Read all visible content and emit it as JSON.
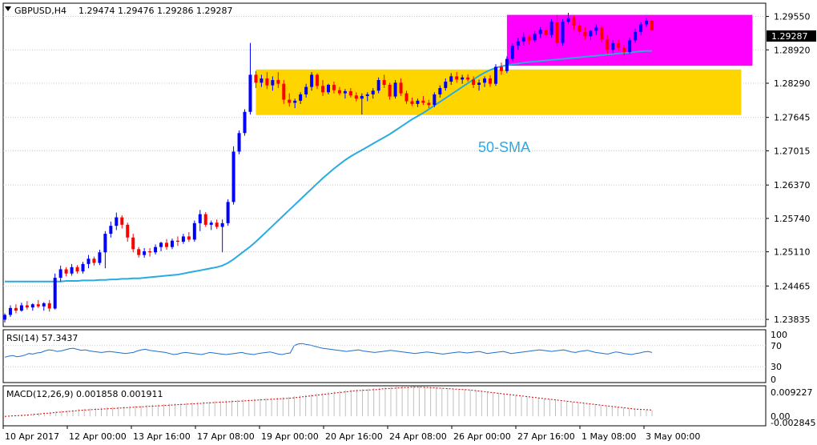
{
  "header": {
    "symbol": "GBPUSD,H4",
    "ohlc": "1.29474 1.29476 1.29286 1.29287"
  },
  "current_price_label": "1.29287",
  "sma_label": "50-SMA",
  "colors": {
    "bull": "#0000ff",
    "bear": "#ff0000",
    "sma": "#29abe2",
    "consolidation_zone": "#ffd500",
    "recent_zone": "#ff00ff",
    "rsi": "#1e6fd0",
    "macd_hist": "#c0c0c0",
    "macd_signal": "#cc0000",
    "grid": "#c8c8c8"
  },
  "main_axis": {
    "ticks": [
      "1.29550",
      "1.28920",
      "1.28290",
      "1.27645",
      "1.27015",
      "1.26370",
      "1.25740",
      "1.25110",
      "1.24465",
      "1.23835"
    ],
    "range": [
      1.237,
      1.298
    ]
  },
  "rsi_panel": {
    "label": "RSI(14) 57.3437",
    "ticks": [
      "100",
      "70",
      "30",
      "0"
    ],
    "values": [
      48,
      50,
      51,
      49,
      50,
      52,
      55,
      54,
      56,
      57,
      60,
      62,
      61,
      59,
      60,
      62,
      64,
      65,
      63,
      61,
      62,
      60,
      59,
      58,
      57,
      58,
      59,
      58,
      57,
      56,
      55,
      56,
      57,
      60,
      62,
      63,
      61,
      60,
      59,
      58,
      57,
      55,
      53,
      54,
      56,
      57,
      56,
      55,
      54,
      53,
      55,
      57,
      56,
      55,
      54,
      53,
      54,
      55,
      56,
      57,
      55,
      54,
      53,
      55,
      56,
      57,
      58,
      56,
      54,
      53,
      55,
      56,
      70,
      73,
      74,
      72,
      71,
      69,
      67,
      65,
      64,
      63,
      62,
      61,
      60,
      59,
      60,
      61,
      62,
      60,
      59,
      58,
      57,
      58,
      59,
      60,
      61,
      60,
      59,
      58,
      57,
      56,
      55,
      56,
      57,
      58,
      57,
      56,
      55,
      54,
      55,
      56,
      57,
      58,
      57,
      56,
      57,
      58,
      59,
      57,
      55,
      56,
      57,
      58,
      59,
      57,
      55,
      56,
      57,
      58,
      59,
      60,
      61,
      62,
      61,
      60,
      59,
      60,
      61,
      62,
      60,
      58,
      57,
      59,
      60,
      61,
      59,
      57,
      56,
      55,
      54,
      56,
      58,
      57,
      55,
      54,
      53,
      55,
      56,
      58,
      59,
      57
    ]
  },
  "macd_panel": {
    "label": "MACD(12,26,9) 0.001858 0.001911",
    "ticks": [
      "0.009227",
      "0.00",
      "-0.002845"
    ],
    "histogram": [
      0.0,
      0.0002,
      0.0003,
      0.0005,
      0.0006,
      0.0008,
      0.001,
      0.0012,
      0.0013,
      0.0015,
      0.0017,
      0.0018,
      0.002,
      0.0022,
      0.0023,
      0.0024,
      0.0025,
      0.0026,
      0.0027,
      0.0028,
      0.0029,
      0.003,
      0.0031,
      0.0032,
      0.0033,
      0.0034,
      0.0035,
      0.0036,
      0.0037,
      0.0038,
      0.0039,
      0.004,
      0.0041,
      0.0042,
      0.0043,
      0.0044,
      0.0045,
      0.0046,
      0.0047,
      0.0048,
      0.0049,
      0.005,
      0.0051,
      0.0052,
      0.0053,
      0.0054,
      0.0055,
      0.0056,
      0.0057,
      0.0058,
      0.0059,
      0.0061,
      0.0063,
      0.0065,
      0.0067,
      0.0069,
      0.0071,
      0.0073,
      0.0075,
      0.0077,
      0.0079,
      0.008,
      0.0081,
      0.0082,
      0.0083,
      0.0085,
      0.0087,
      0.0088,
      0.0089,
      0.009,
      0.0091,
      0.0092,
      0.0091,
      0.009,
      0.0089,
      0.0088,
      0.0087,
      0.0086,
      0.0085,
      0.0084,
      0.0083,
      0.0082,
      0.008,
      0.0078,
      0.0076,
      0.0074,
      0.0072,
      0.007,
      0.0068,
      0.0066,
      0.0064,
      0.0062,
      0.006,
      0.0058,
      0.0056,
      0.0054,
      0.0052,
      0.005,
      0.0048,
      0.0046,
      0.0044,
      0.0042,
      0.004,
      0.0038,
      0.0036,
      0.0034,
      0.0032,
      0.003,
      0.0028,
      0.0026,
      0.0024,
      0.0022,
      0.002,
      0.0019,
      0.0018
    ],
    "signal": [
      0.0,
      0.0001,
      0.0002,
      0.0003,
      0.0004,
      0.0006,
      0.0007,
      0.0009,
      0.001,
      0.0012,
      0.0013,
      0.0015,
      0.0016,
      0.0018,
      0.0019,
      0.002,
      0.0021,
      0.0022,
      0.0023,
      0.0024,
      0.0025,
      0.0026,
      0.0027,
      0.0028,
      0.0029,
      0.003,
      0.0031,
      0.0032,
      0.0033,
      0.0034,
      0.0035,
      0.0036,
      0.0037,
      0.0038,
      0.0039,
      0.004,
      0.0041,
      0.0042,
      0.0043,
      0.0044,
      0.0045,
      0.0046,
      0.0047,
      0.0048,
      0.0049,
      0.005,
      0.0051,
      0.0052,
      0.0053,
      0.0054,
      0.0055,
      0.0057,
      0.0059,
      0.0061,
      0.0063,
      0.0065,
      0.0067,
      0.0069,
      0.0071,
      0.0073,
      0.0075,
      0.0077,
      0.0078,
      0.0079,
      0.008,
      0.0081,
      0.0083,
      0.0084,
      0.0085,
      0.0086,
      0.0087,
      0.0088,
      0.0088,
      0.0088,
      0.0087,
      0.0086,
      0.0085,
      0.0084,
      0.0083,
      0.0082,
      0.0081,
      0.008,
      0.0078,
      0.0076,
      0.0074,
      0.0072,
      0.007,
      0.0068,
      0.0066,
      0.0064,
      0.0062,
      0.006,
      0.0058,
      0.0056,
      0.0054,
      0.0052,
      0.005,
      0.0048,
      0.0046,
      0.0044,
      0.0042,
      0.004,
      0.0038,
      0.0036,
      0.0034,
      0.0032,
      0.003,
      0.0028,
      0.0026,
      0.0024,
      0.0022,
      0.0021,
      0.002,
      0.0019
    ]
  },
  "x_axis": {
    "labels": [
      "10 Apr 2017",
      "12 Apr 00:00",
      "13 Apr 16:00",
      "17 Apr 08:00",
      "19 Apr 00:00",
      "20 Apr 16:00",
      "24 Apr 08:00",
      "26 Apr 00:00",
      "27 Apr 16:00",
      "1 May 08:00",
      "3 May 00:00"
    ]
  },
  "chart_data": {
    "type": "candlestick",
    "title": "GBPUSD,H4",
    "zones": [
      {
        "from_index": 45,
        "to_index": 132,
        "low": 1.2769,
        "high": 1.2855
      },
      {
        "from_index": 90,
        "to_index": 134,
        "low": 1.2862,
        "high": 1.2958
      }
    ],
    "candles": [
      [
        1.2383,
        1.2395,
        1.2378,
        1.2392
      ],
      [
        1.2392,
        1.241,
        1.2388,
        1.2405
      ],
      [
        1.2405,
        1.2412,
        1.2395,
        1.24
      ],
      [
        1.24,
        1.2415,
        1.2398,
        1.241
      ],
      [
        1.241,
        1.2418,
        1.2402,
        1.2406
      ],
      [
        1.2406,
        1.2414,
        1.24,
        1.2412
      ],
      [
        1.2412,
        1.242,
        1.2405,
        1.2408
      ],
      [
        1.2408,
        1.2416,
        1.24,
        1.2414
      ],
      [
        1.2414,
        1.242,
        1.2398,
        1.2404
      ],
      [
        1.2404,
        1.247,
        1.2402,
        1.2462
      ],
      [
        1.2462,
        1.2485,
        1.2455,
        1.2478
      ],
      [
        1.2478,
        1.2482,
        1.2465,
        1.247
      ],
      [
        1.247,
        1.2488,
        1.2466,
        1.2482
      ],
      [
        1.2482,
        1.2486,
        1.247,
        1.2474
      ],
      [
        1.2474,
        1.2492,
        1.247,
        1.2488
      ],
      [
        1.2488,
        1.2505,
        1.248,
        1.2498
      ],
      [
        1.2498,
        1.2502,
        1.2485,
        1.249
      ],
      [
        1.249,
        1.2515,
        1.2486,
        1.251
      ],
      [
        1.251,
        1.255,
        1.248,
        1.2545
      ],
      [
        1.2545,
        1.2568,
        1.2538,
        1.256
      ],
      [
        1.256,
        1.2585,
        1.2552,
        1.2576
      ],
      [
        1.2576,
        1.258,
        1.2555,
        1.2562
      ],
      [
        1.2562,
        1.2566,
        1.253,
        1.2538
      ],
      [
        1.2538,
        1.2545,
        1.251,
        1.2516
      ],
      [
        1.2516,
        1.252,
        1.25,
        1.2505
      ],
      [
        1.2505,
        1.2518,
        1.25,
        1.2512
      ],
      [
        1.2512,
        1.2518,
        1.2502,
        1.251
      ],
      [
        1.251,
        1.2525,
        1.2506,
        1.252
      ],
      [
        1.252,
        1.253,
        1.2512,
        1.2528
      ],
      [
        1.2528,
        1.2535,
        1.2515,
        1.252
      ],
      [
        1.252,
        1.2536,
        1.2516,
        1.2532
      ],
      [
        1.2532,
        1.254,
        1.2522,
        1.253
      ],
      [
        1.253,
        1.2545,
        1.2526,
        1.254
      ],
      [
        1.254,
        1.2548,
        1.253,
        1.2534
      ],
      [
        1.2534,
        1.257,
        1.253,
        1.2565
      ],
      [
        1.2565,
        1.259,
        1.255,
        1.2582
      ],
      [
        1.2582,
        1.2586,
        1.2558,
        1.2562
      ],
      [
        1.2562,
        1.257,
        1.2552,
        1.2566
      ],
      [
        1.2566,
        1.2572,
        1.2554,
        1.2558
      ],
      [
        1.2558,
        1.2572,
        1.251,
        1.2565
      ],
      [
        1.2565,
        1.261,
        1.256,
        1.2605
      ],
      [
        1.2605,
        1.271,
        1.26,
        1.27
      ],
      [
        1.27,
        1.274,
        1.2695,
        1.2735
      ],
      [
        1.2735,
        1.278,
        1.273,
        1.2775
      ],
      [
        1.2775,
        1.2905,
        1.277,
        1.2845
      ],
      [
        1.2845,
        1.2852,
        1.282,
        1.283
      ],
      [
        1.283,
        1.2845,
        1.2822,
        1.2838
      ],
      [
        1.2838,
        1.285,
        1.2818,
        1.2825
      ],
      [
        1.2825,
        1.2842,
        1.2815,
        1.2835
      ],
      [
        1.2835,
        1.285,
        1.282,
        1.2828
      ],
      [
        1.2828,
        1.2835,
        1.279,
        1.2798
      ],
      [
        1.2798,
        1.281,
        1.2785,
        1.2792
      ],
      [
        1.2792,
        1.28,
        1.2782,
        1.2796
      ],
      [
        1.2796,
        1.2812,
        1.279,
        1.2808
      ],
      [
        1.2808,
        1.2828,
        1.2802,
        1.2822
      ],
      [
        1.2822,
        1.285,
        1.2815,
        1.2845
      ],
      [
        1.2845,
        1.2848,
        1.2818,
        1.2824
      ],
      [
        1.2824,
        1.2835,
        1.2805,
        1.2812
      ],
      [
        1.2812,
        1.2828,
        1.2808,
        1.2826
      ],
      [
        1.2826,
        1.2832,
        1.281,
        1.2816
      ],
      [
        1.2816,
        1.2822,
        1.2806,
        1.281
      ],
      [
        1.281,
        1.2818,
        1.28,
        1.2814
      ],
      [
        1.2814,
        1.282,
        1.2802,
        1.2806
      ],
      [
        1.2806,
        1.2812,
        1.2795,
        1.28
      ],
      [
        1.28,
        1.281,
        1.277,
        1.2805
      ],
      [
        1.2805,
        1.2812,
        1.2795,
        1.2808
      ],
      [
        1.2808,
        1.282,
        1.28,
        1.2815
      ],
      [
        1.2815,
        1.284,
        1.281,
        1.2835
      ],
      [
        1.2835,
        1.2845,
        1.282,
        1.2826
      ],
      [
        1.2826,
        1.283,
        1.2798,
        1.2804
      ],
      [
        1.2804,
        1.2835,
        1.28,
        1.283
      ],
      [
        1.283,
        1.2838,
        1.2805,
        1.281
      ],
      [
        1.281,
        1.2815,
        1.279,
        1.2795
      ],
      [
        1.2795,
        1.2802,
        1.2786,
        1.279
      ],
      [
        1.279,
        1.28,
        1.2784,
        1.2796
      ],
      [
        1.2796,
        1.2805,
        1.2788,
        1.2792
      ],
      [
        1.2792,
        1.2798,
        1.2782,
        1.2788
      ],
      [
        1.2788,
        1.2812,
        1.2784,
        1.2808
      ],
      [
        1.2808,
        1.2825,
        1.2802,
        1.282
      ],
      [
        1.282,
        1.2838,
        1.2815,
        1.2832
      ],
      [
        1.2832,
        1.2848,
        1.2826,
        1.2842
      ],
      [
        1.2842,
        1.285,
        1.283,
        1.2836
      ],
      [
        1.2836,
        1.2845,
        1.2828,
        1.284
      ],
      [
        1.284,
        1.2846,
        1.2832,
        1.2836
      ],
      [
        1.2836,
        1.2842,
        1.282,
        1.2826
      ],
      [
        1.2826,
        1.2836,
        1.2815,
        1.283
      ],
      [
        1.283,
        1.2842,
        1.2822,
        1.2838
      ],
      [
        1.2838,
        1.2844,
        1.2822,
        1.2828
      ],
      [
        1.2828,
        1.2865,
        1.2824,
        1.286
      ],
      [
        1.286,
        1.2868,
        1.2845,
        1.2852
      ],
      [
        1.2852,
        1.288,
        1.2848,
        1.2875
      ],
      [
        1.2875,
        1.2905,
        1.287,
        1.29
      ],
      [
        1.29,
        1.2915,
        1.2892,
        1.2908
      ],
      [
        1.2908,
        1.2925,
        1.29,
        1.2916
      ],
      [
        1.2916,
        1.292,
        1.2902,
        1.291
      ],
      [
        1.291,
        1.2928,
        1.2906,
        1.2922
      ],
      [
        1.2922,
        1.2935,
        1.2914,
        1.293
      ],
      [
        1.293,
        1.2934,
        1.2915,
        1.292
      ],
      [
        1.292,
        1.295,
        1.2915,
        1.2945
      ],
      [
        1.2945,
        1.2958,
        1.2898,
        1.2905
      ],
      [
        1.2905,
        1.295,
        1.29,
        1.2945
      ],
      [
        1.2945,
        1.2962,
        1.294,
        1.2952
      ],
      [
        1.2952,
        1.2956,
        1.293,
        1.2938
      ],
      [
        1.2938,
        1.2945,
        1.292,
        1.2926
      ],
      [
        1.2926,
        1.2935,
        1.2912,
        1.2918
      ],
      [
        1.2918,
        1.293,
        1.291,
        1.2928
      ],
      [
        1.2928,
        1.294,
        1.292,
        1.2934
      ],
      [
        1.2934,
        1.2938,
        1.2905,
        1.2912
      ],
      [
        1.2912,
        1.292,
        1.2885,
        1.2892
      ],
      [
        1.2892,
        1.291,
        1.2886,
        1.2905
      ],
      [
        1.2905,
        1.2912,
        1.289,
        1.2896
      ],
      [
        1.2896,
        1.2902,
        1.288,
        1.2888
      ],
      [
        1.2888,
        1.2915,
        1.2885,
        1.291
      ],
      [
        1.291,
        1.2932,
        1.2905,
        1.2926
      ],
      [
        1.2926,
        1.2944,
        1.292,
        1.294
      ],
      [
        1.294,
        1.2952,
        1.2935,
        1.2947
      ],
      [
        1.2947,
        1.2948,
        1.2928,
        1.2929
      ]
    ],
    "sma": [
      1.2455,
      1.2455,
      1.2455,
      1.2455,
      1.2455,
      1.2455,
      1.2455,
      1.2455,
      1.2455,
      1.2455,
      1.2455,
      1.2456,
      1.2456,
      1.2456,
      1.2457,
      1.2457,
      1.2457,
      1.2458,
      1.2458,
      1.2459,
      1.2459,
      1.246,
      1.246,
      1.2461,
      1.2461,
      1.2462,
      1.2463,
      1.2464,
      1.2465,
      1.2466,
      1.2467,
      1.2468,
      1.247,
      1.2472,
      1.2474,
      1.2476,
      1.2478,
      1.248,
      1.2482,
      1.2485,
      1.249,
      1.2497,
      1.2505,
      1.2513,
      1.2521,
      1.253,
      1.254,
      1.255,
      1.256,
      1.257,
      1.258,
      1.259,
      1.26,
      1.261,
      1.262,
      1.263,
      1.264,
      1.265,
      1.2659,
      1.2668,
      1.2676,
      1.2684,
      1.2691,
      1.2697,
      1.2703,
      1.2709,
      1.2715,
      1.2721,
      1.2727,
      1.2733,
      1.274,
      1.2747,
      1.2754,
      1.2761,
      1.2767,
      1.2773,
      1.278,
      1.2787,
      1.2794,
      1.2801,
      1.2808,
      1.2815,
      1.2822,
      1.2829,
      1.2836,
      1.2843,
      1.2849,
      1.2854,
      1.2858,
      1.2861,
      1.2863,
      1.2865,
      1.2866,
      1.2868,
      1.2869,
      1.287,
      1.2871,
      1.2872,
      1.2873,
      1.2874,
      1.2875,
      1.2876,
      1.2877,
      1.2878,
      1.2879,
      1.288,
      1.2881,
      1.2882,
      1.2883,
      1.2884,
      1.2885,
      1.2886,
      1.2887,
      1.2888,
      1.2889,
      1.289,
      1.289
    ]
  }
}
